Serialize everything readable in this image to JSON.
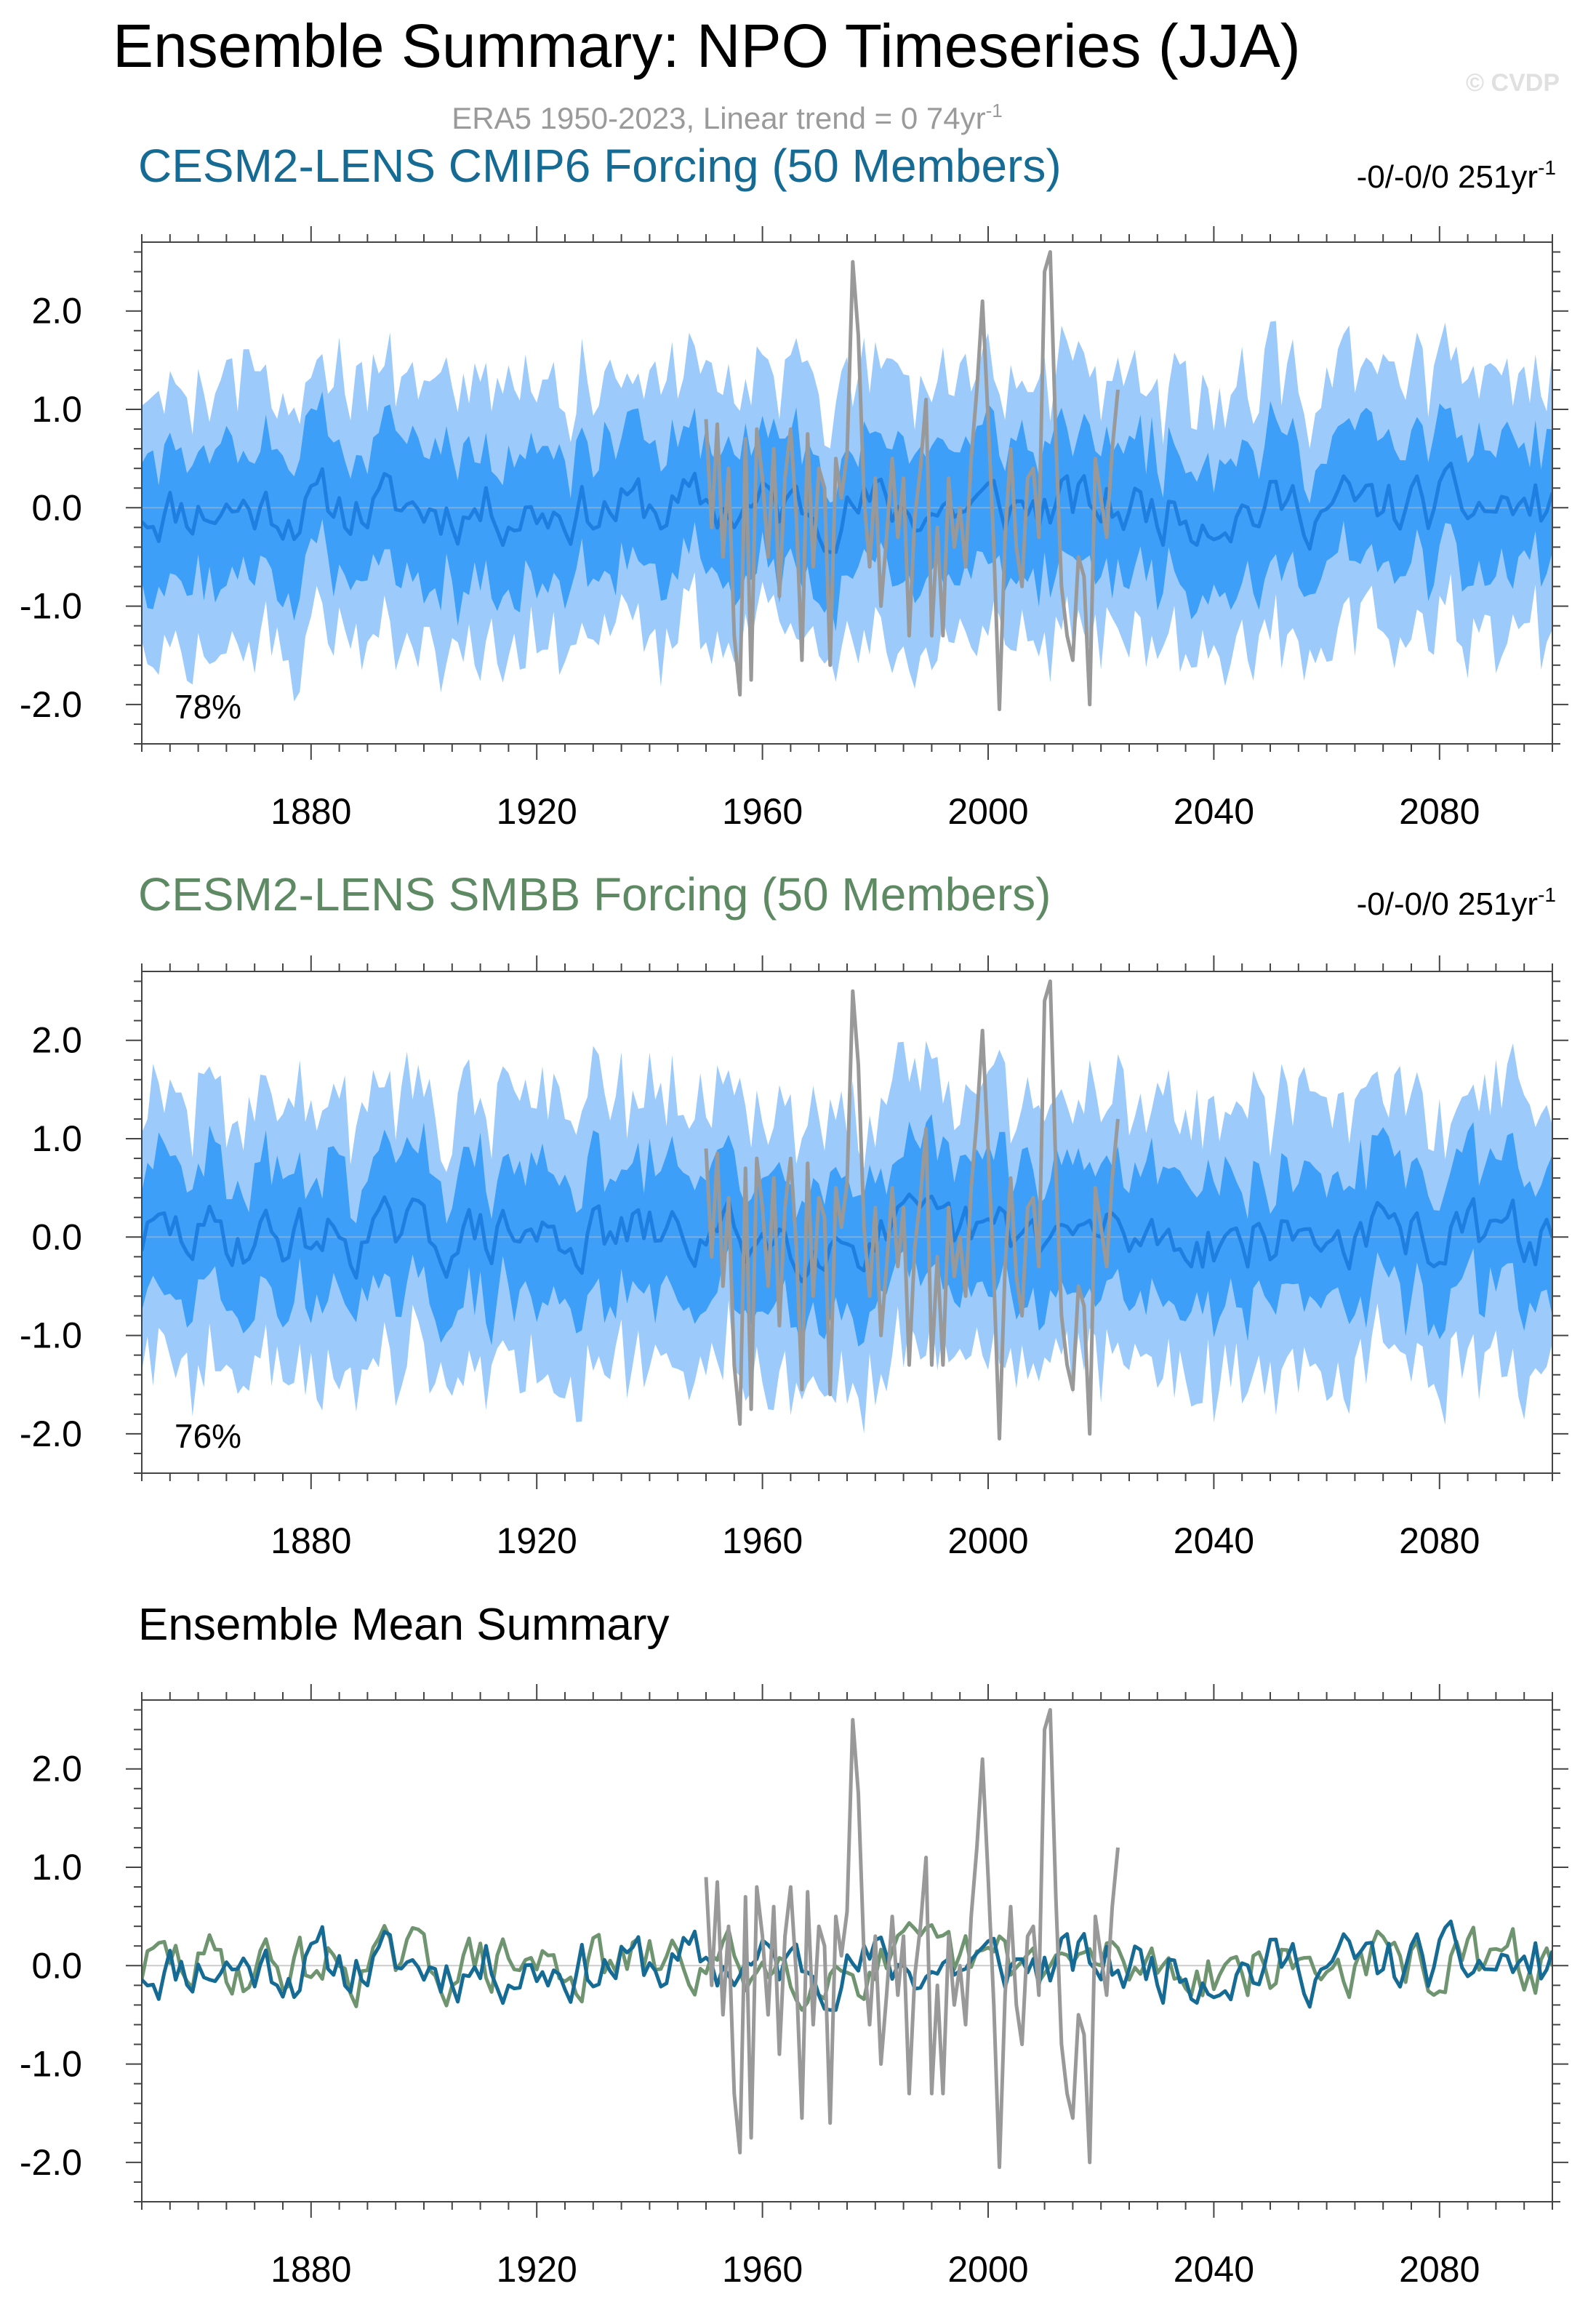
{
  "page": {
    "title": "Ensemble Summary: NPO Timeseries (JJA)",
    "subtitle": "ERA5 1950-2023, Linear trend = 0 74yr",
    "subtitle_sup": "-1",
    "watermark": "© CVDP"
  },
  "colors": {
    "outer_band": "#9ccbfb",
    "inner_band": "#3d9ff7",
    "ens_mean_line": "#1f7fe0",
    "obs_line": "#999999",
    "cmip6_title": "#156b94",
    "smbb_title": "#5e8a63",
    "summary_cmip6": "#156b94",
    "summary_smbb": "#6f9470"
  },
  "chart_data": [
    {
      "type": "area",
      "title": "CESM2-LENS CMIP6 Forcing (50 Members)",
      "trend": "-0/-0/0 251yr",
      "trend_sup": "-1",
      "percent": "78%",
      "x_range": [
        1850,
        2100
      ],
      "ylim": [
        -2.4,
        2.7
      ],
      "xticks": [
        "1880",
        "1920",
        "1960",
        "2000",
        "2040",
        "2080"
      ],
      "yticks": [
        "2.0",
        "1.0",
        "0.0",
        "-1.0",
        "-2.0"
      ],
      "series": [
        {
          "name": "",
          "kind": "band-outer",
          "spread": [
            1.0,
            1.65
          ]
        },
        {
          "name": "",
          "kind": "band-inner",
          "spread": [
            0.45,
            0.85
          ]
        },
        {
          "name": "",
          "kind": "ensemble-mean"
        },
        {
          "name": "",
          "kind": "observed"
        }
      ],
      "seed": 11
    },
    {
      "type": "area",
      "title": "CESM2-LENS SMBB Forcing (50 Members)",
      "trend": "-0/-0/0 251yr",
      "trend_sup": "-1",
      "percent": "76%",
      "x_range": [
        1850,
        2100
      ],
      "ylim": [
        -2.4,
        2.7
      ],
      "xticks": [
        "1880",
        "1920",
        "1960",
        "2000",
        "2040",
        "2080"
      ],
      "yticks": [
        "2.0",
        "1.0",
        "0.0",
        "-1.0",
        "-2.0"
      ],
      "series": [
        {
          "name": "",
          "kind": "band-outer",
          "spread": [
            1.0,
            1.7
          ]
        },
        {
          "name": "",
          "kind": "band-inner",
          "spread": [
            0.45,
            0.85
          ]
        },
        {
          "name": "",
          "kind": "ensemble-mean"
        },
        {
          "name": "",
          "kind": "observed"
        }
      ],
      "seed": 29
    },
    {
      "type": "line",
      "title": "Ensemble Mean Summary",
      "x_range": [
        1850,
        2100
      ],
      "ylim": [
        -2.4,
        2.7
      ],
      "xticks": [
        "1880",
        "1920",
        "1960",
        "2000",
        "2040",
        "2080"
      ],
      "yticks": [
        "2.0",
        "1.0",
        "0.0",
        "-1.0",
        "-2.0"
      ],
      "series": [
        {
          "name": "",
          "kind": "cmip6-mean"
        },
        {
          "name": "",
          "kind": "smbb-mean"
        },
        {
          "name": "",
          "kind": "observed"
        }
      ]
    }
  ],
  "observed": {
    "years": [
      1950,
      1951,
      1952,
      1953,
      1954,
      1955,
      1956,
      1957,
      1958,
      1959,
      1960,
      1961,
      1962,
      1963,
      1964,
      1965,
      1966,
      1967,
      1968,
      1969,
      1970,
      1971,
      1972,
      1973,
      1974,
      1975,
      1976,
      1977,
      1978,
      1979,
      1980,
      1981,
      1982,
      1983,
      1984,
      1985,
      1986,
      1987,
      1988,
      1989,
      1990,
      1991,
      1992,
      1993,
      1994,
      1995,
      1996,
      1997,
      1998,
      1999,
      2000,
      2001,
      2002,
      2003,
      2004,
      2005,
      2006,
      2007,
      2008,
      2009,
      2010,
      2011,
      2012,
      2013,
      2014,
      2015,
      2016,
      2017,
      2018,
      2019,
      2020,
      2021,
      2022,
      2023
    ],
    "values": [
      0.9,
      -0.2,
      0.85,
      -0.5,
      0.4,
      -1.3,
      -1.9,
      0.7,
      -1.75,
      0.8,
      0.3,
      -0.5,
      0.6,
      -0.9,
      0.3,
      0.8,
      -0.1,
      -1.55,
      0.75,
      -0.6,
      0.4,
      0.2,
      -1.6,
      0.5,
      0.1,
      0.55,
      2.5,
      1.75,
      0.1,
      -0.6,
      0.3,
      -1.0,
      -0.3,
      0.5,
      -0.3,
      0.3,
      -1.3,
      -0.1,
      0.4,
      1.1,
      -1.3,
      -0.2,
      -1.3,
      0.3,
      -0.4,
      0.0,
      -0.6,
      0.5,
      1.2,
      2.1,
      0.9,
      -0.4,
      -2.05,
      -0.3,
      0.6,
      -0.4,
      -0.8,
      0.3,
      0.4,
      -0.3,
      2.4,
      2.6,
      0.7,
      -0.8,
      -1.3,
      -1.55,
      -0.5,
      -0.7,
      -2.0,
      0.5,
      0.1,
      -0.3,
      0.6,
      1.2
    ]
  }
}
